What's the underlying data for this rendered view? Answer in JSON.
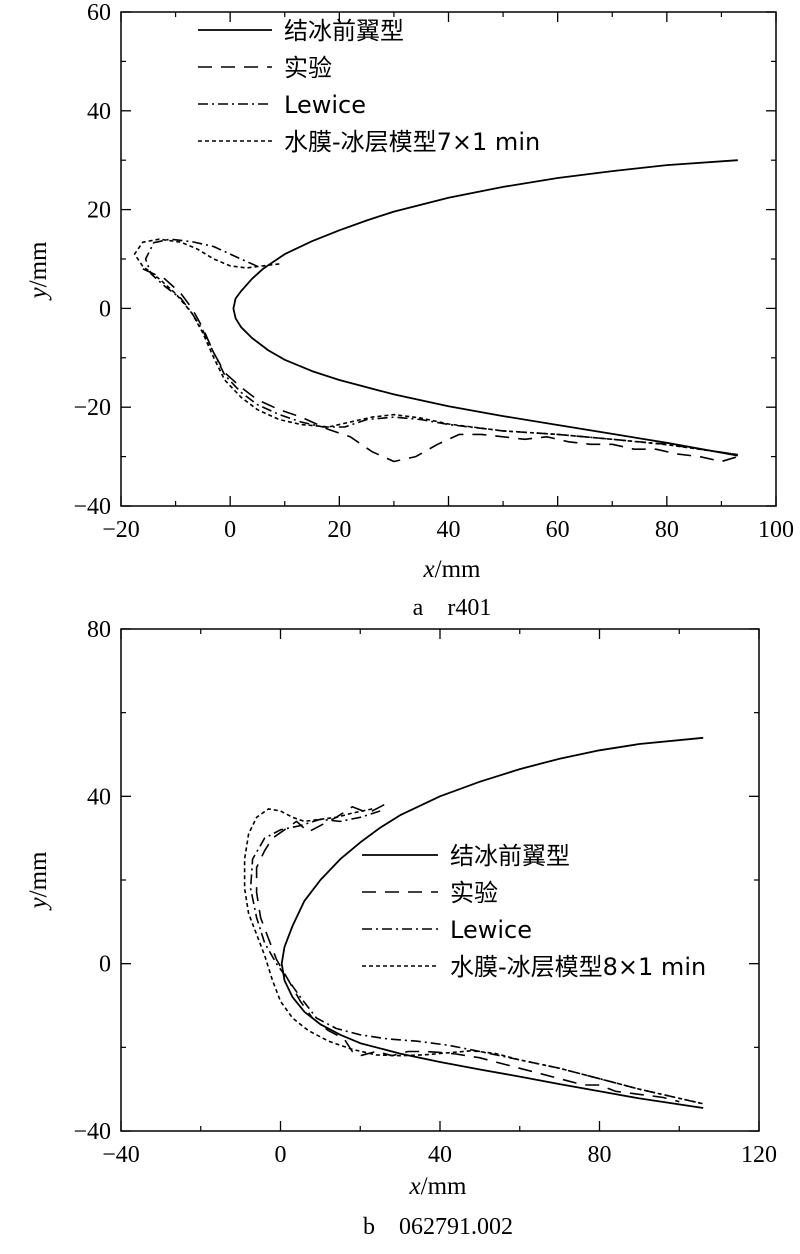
{
  "chart_data": [
    {
      "type": "line",
      "caption": "a　r401",
      "xlabel_var": "x",
      "xlabel_unit": "/mm",
      "ylabel_var": "y",
      "ylabel_unit": "/mm",
      "xlim": [
        -20,
        100
      ],
      "ylim": [
        -40,
        60
      ],
      "xticks": [
        -20,
        0,
        20,
        40,
        60,
        80,
        100
      ],
      "yticks": [
        -40,
        -20,
        0,
        20,
        40,
        60
      ],
      "xtick_labels": [
        "−20",
        "0",
        "20",
        "40",
        "60",
        "80",
        "100"
      ],
      "ytick_labels": [
        "−40",
        "−20",
        "0",
        "20",
        "40",
        "60"
      ],
      "grid": false,
      "legend_position": "top-left",
      "series": [
        {
          "name": "结冰前翼型",
          "style": "solid",
          "points": [
            [
              93,
              30
            ],
            [
              80,
              29
            ],
            [
              70,
              27.8
            ],
            [
              60,
              26.4
            ],
            [
              50,
              24.6
            ],
            [
              40,
              22.4
            ],
            [
              30,
              19.6
            ],
            [
              25,
              17.8
            ],
            [
              20,
              15.8
            ],
            [
              15,
              13.6
            ],
            [
              10,
              11
            ],
            [
              6,
              8
            ],
            [
              4,
              6
            ],
            [
              2,
              3.5
            ],
            [
              1,
              2
            ],
            [
              0.6,
              0
            ],
            [
              1,
              -2
            ],
            [
              2,
              -3.8
            ],
            [
              4,
              -6
            ],
            [
              7,
              -8.5
            ],
            [
              10,
              -10.4
            ],
            [
              15,
              -12.7
            ],
            [
              20,
              -14.5
            ],
            [
              30,
              -17.4
            ],
            [
              40,
              -19.8
            ],
            [
              50,
              -21.8
            ],
            [
              60,
              -23.6
            ],
            [
              70,
              -25.4
            ],
            [
              80,
              -27.2
            ],
            [
              93,
              -29.8
            ]
          ]
        },
        {
          "name": "实验",
          "style": "dashed",
          "points": [
            [
              -16,
              8
            ],
            [
              -12,
              6
            ],
            [
              -9,
              3
            ],
            [
              -7,
              0
            ],
            [
              -5,
              -4
            ],
            [
              -3,
              -9
            ],
            [
              -1,
              -13
            ],
            [
              2,
              -16
            ],
            [
              5,
              -18.5
            ],
            [
              9,
              -20.5
            ],
            [
              13,
              -22
            ],
            [
              18,
              -24.5
            ],
            [
              22,
              -26
            ],
            [
              26,
              -29
            ],
            [
              30,
              -31
            ],
            [
              34,
              -30
            ],
            [
              38,
              -27.5
            ],
            [
              42,
              -25.5
            ],
            [
              46,
              -25.5
            ],
            [
              50,
              -26
            ],
            [
              54,
              -26.5
            ],
            [
              58,
              -26
            ],
            [
              62,
              -27
            ],
            [
              66,
              -27.5
            ],
            [
              70,
              -27.5
            ],
            [
              74,
              -28.5
            ],
            [
              78,
              -28.5
            ],
            [
              82,
              -29.5
            ],
            [
              86,
              -30
            ],
            [
              90,
              -31
            ],
            [
              93,
              -30
            ]
          ]
        },
        {
          "name": "Lewice",
          "style": "dashdot",
          "points": [
            [
              5,
              8.5
            ],
            [
              3,
              9.5
            ],
            [
              0,
              11
            ],
            [
              -3,
              12.5
            ],
            [
              -7,
              13.5
            ],
            [
              -11,
              14
            ],
            [
              -14,
              13.3
            ],
            [
              -15.5,
              10
            ],
            [
              -14.5,
              7
            ],
            [
              -12,
              4.5
            ],
            [
              -9,
              2
            ],
            [
              -7,
              -1
            ],
            [
              -5,
              -4.5
            ],
            [
              -3,
              -9
            ],
            [
              -1,
              -13.5
            ],
            [
              2,
              -17
            ],
            [
              5,
              -19.5
            ],
            [
              9,
              -21.5
            ],
            [
              13,
              -23
            ],
            [
              17,
              -24
            ],
            [
              21,
              -24
            ],
            [
              25,
              -22.5
            ],
            [
              30,
              -22
            ],
            [
              35,
              -22.5
            ],
            [
              40,
              -23.5
            ],
            [
              50,
              -24.8
            ],
            [
              60,
              -25.5
            ],
            [
              70,
              -26.5
            ],
            [
              80,
              -27.5
            ],
            [
              93,
              -29.6
            ]
          ]
        },
        {
          "name": "水膜-冰层模型7×1 min",
          "style": "dotted",
          "points": [
            [
              9,
              9
            ],
            [
              6,
              8.6
            ],
            [
              3,
              8.2
            ],
            [
              0,
              8.6
            ],
            [
              -3,
              10
            ],
            [
              -6,
              12
            ],
            [
              -9,
              13.4
            ],
            [
              -13,
              14
            ],
            [
              -16,
              13.4
            ],
            [
              -17.5,
              11
            ],
            [
              -16,
              8.5
            ],
            [
              -13,
              6
            ],
            [
              -10,
              3
            ],
            [
              -7,
              -1
            ],
            [
              -5,
              -5
            ],
            [
              -3,
              -10
            ],
            [
              -1,
              -14.5
            ],
            [
              2,
              -18
            ],
            [
              5,
              -20.5
            ],
            [
              9,
              -22.5
            ],
            [
              13,
              -23.5
            ],
            [
              18,
              -24
            ],
            [
              22,
              -23
            ],
            [
              26,
              -22
            ],
            [
              30,
              -21.5
            ],
            [
              35,
              -22.2
            ],
            [
              40,
              -23.4
            ],
            [
              50,
              -24.8
            ],
            [
              60,
              -25.5
            ],
            [
              70,
              -26.5
            ],
            [
              80,
              -27.6
            ],
            [
              93,
              -29.6
            ]
          ]
        }
      ]
    },
    {
      "type": "line",
      "caption": "b　062791.002",
      "xlabel_var": "x",
      "xlabel_unit": "/mm",
      "ylabel_var": "y",
      "ylabel_unit": "/mm",
      "xlim": [
        -40,
        120
      ],
      "ylim": [
        -40,
        80
      ],
      "xticks": [
        -40,
        0,
        40,
        80,
        120
      ],
      "yticks": [
        -40,
        0,
        40,
        80
      ],
      "xtick_labels": [
        "−40",
        "0",
        "40",
        "80",
        "120"
      ],
      "ytick_labels": [
        "−40",
        "0",
        "40",
        "80"
      ],
      "grid": false,
      "legend_position": "center-right",
      "series": [
        {
          "name": "结冰前翼型",
          "style": "solid",
          "points": [
            [
              106,
              54
            ],
            [
              90,
              52.5
            ],
            [
              80,
              51
            ],
            [
              70,
              49
            ],
            [
              60,
              46.5
            ],
            [
              50,
              43.5
            ],
            [
              40,
              40
            ],
            [
              30,
              35.5
            ],
            [
              25,
              32.5
            ],
            [
              20,
              29
            ],
            [
              15,
              25
            ],
            [
              10,
              20
            ],
            [
              6,
              15
            ],
            [
              3,
              9
            ],
            [
              1,
              4
            ],
            [
              0.3,
              0
            ],
            [
              1,
              -4
            ],
            [
              3,
              -8
            ],
            [
              6,
              -11.5
            ],
            [
              10,
              -14.5
            ],
            [
              15,
              -17
            ],
            [
              20,
              -19
            ],
            [
              30,
              -21.5
            ],
            [
              40,
              -23.5
            ],
            [
              50,
              -25.3
            ],
            [
              60,
              -27
            ],
            [
              70,
              -28.8
            ],
            [
              80,
              -30.5
            ],
            [
              90,
              -32.2
            ],
            [
              106,
              -34.5
            ]
          ]
        },
        {
          "name": "实验",
          "style": "dashed",
          "points": [
            [
              26,
              38
            ],
            [
              22,
              36
            ],
            [
              18,
              37.5
            ],
            [
              14,
              35
            ],
            [
              10,
              33
            ],
            [
              7,
              31.5
            ],
            [
              4,
              34
            ],
            [
              1,
              32
            ],
            [
              -2,
              30
            ],
            [
              -4,
              27
            ],
            [
              -6,
              23
            ],
            [
              -6,
              17
            ],
            [
              -5,
              11
            ],
            [
              -3,
              6
            ],
            [
              -1,
              1
            ],
            [
              2,
              -4
            ],
            [
              5,
              -9
            ],
            [
              8,
              -13
            ],
            [
              12,
              -16
            ],
            [
              16,
              -18
            ],
            [
              18,
              -21
            ],
            [
              20,
              -22
            ],
            [
              24,
              -21
            ],
            [
              28,
              -22
            ],
            [
              32,
              -21
            ],
            [
              36,
              -21
            ],
            [
              40,
              -21.2
            ],
            [
              44,
              -21.6
            ],
            [
              50,
              -22.5
            ],
            [
              56,
              -24
            ],
            [
              60,
              -25
            ],
            [
              64,
              -26
            ],
            [
              68,
              -27
            ],
            [
              72,
              -28
            ],
            [
              76,
              -29
            ],
            [
              80,
              -29
            ],
            [
              84,
              -30.5
            ],
            [
              88,
              -31
            ],
            [
              92,
              -31.5
            ],
            [
              96,
              -32
            ],
            [
              100,
              -33
            ]
          ]
        },
        {
          "name": "Lewice",
          "style": "dashdot",
          "points": [
            [
              25,
              36.5
            ],
            [
              20,
              35
            ],
            [
              15,
              34
            ],
            [
              10,
              34.5
            ],
            [
              5,
              33
            ],
            [
              0,
              32
            ],
            [
              -4,
              30
            ],
            [
              -7,
              25
            ],
            [
              -7.5,
              18
            ],
            [
              -6,
              11
            ],
            [
              -4,
              5
            ],
            [
              -1,
              0
            ],
            [
              2,
              -4
            ],
            [
              5,
              -8
            ],
            [
              9,
              -13
            ],
            [
              14,
              -15.5
            ],
            [
              20,
              -17
            ],
            [
              27,
              -18
            ],
            [
              34,
              -18.5
            ],
            [
              42,
              -19.5
            ],
            [
              50,
              -21
            ],
            [
              60,
              -23
            ],
            [
              70,
              -25
            ],
            [
              80,
              -27.5
            ],
            [
              90,
              -30
            ],
            [
              106,
              -33.5
            ]
          ]
        },
        {
          "name": "水膜-冰层模型8×1 min",
          "style": "dotted",
          "points": [
            [
              23,
              37
            ],
            [
              18,
              36
            ],
            [
              14,
              35
            ],
            [
              10,
              34.5
            ],
            [
              6,
              34
            ],
            [
              3,
              35
            ],
            [
              0,
              36.5
            ],
            [
              -3,
              37
            ],
            [
              -6,
              35
            ],
            [
              -8,
              31
            ],
            [
              -9,
              25
            ],
            [
              -9,
              18
            ],
            [
              -8,
              12
            ],
            [
              -6,
              7
            ],
            [
              -4,
              2
            ],
            [
              -2,
              -4
            ],
            [
              0,
              -9
            ],
            [
              3,
              -13
            ],
            [
              7,
              -16
            ],
            [
              12,
              -18.5
            ],
            [
              18,
              -20.5
            ],
            [
              24,
              -21.8
            ],
            [
              30,
              -22
            ],
            [
              36,
              -21.8
            ],
            [
              42,
              -21.3
            ],
            [
              48,
              -20.8
            ],
            [
              54,
              -21.5
            ],
            [
              60,
              -23
            ],
            [
              70,
              -25
            ],
            [
              80,
              -27.5
            ],
            [
              90,
              -30
            ],
            [
              106,
              -33.5
            ]
          ]
        }
      ]
    }
  ]
}
